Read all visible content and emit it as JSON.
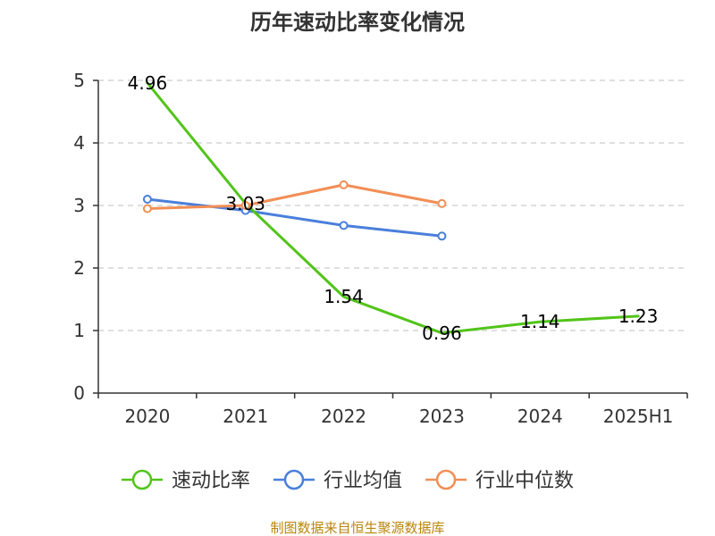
{
  "chart_data": {
    "type": "line",
    "title": "历年速动比率变化情况",
    "categories": [
      "2020",
      "2021",
      "2022",
      "2023",
      "2024",
      "2025H1"
    ],
    "y_ticks": [
      "0",
      "1",
      "2",
      "3",
      "4",
      "5"
    ],
    "ylim": [
      0,
      5
    ],
    "grid": true,
    "legend_position": "bottom",
    "series": [
      {
        "name": "速动比率",
        "color": "#52c41a",
        "values": [
          4.96,
          3.03,
          1.54,
          0.96,
          1.14,
          1.23
        ],
        "labels": [
          "4.96",
          "3.03",
          "1.54",
          "0.96",
          "1.14",
          "1.23"
        ],
        "show_markers": false
      },
      {
        "name": "行业均值",
        "color": "#4a7fdb",
        "values": [
          3.1,
          2.92,
          2.68,
          2.51,
          null,
          null
        ],
        "show_markers": true
      },
      {
        "name": "行业中位数",
        "color": "#f28e55",
        "values": [
          2.95,
          3.0,
          3.33,
          3.03,
          null,
          null
        ],
        "show_markers": true
      }
    ],
    "source": "制图数据来自恒生聚源数据库"
  }
}
